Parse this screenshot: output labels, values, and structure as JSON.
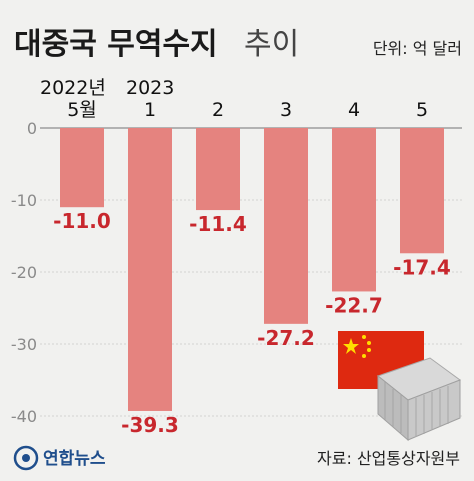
{
  "header": {
    "title_main": "대중국 무역수지",
    "title_sub": "추이",
    "unit": "단위: 억 달러"
  },
  "chart_data": {
    "type": "bar",
    "title": "대중국 무역수지 추이",
    "year_labels": [
      "2022년",
      "2023"
    ],
    "categories": [
      "5월",
      "1",
      "2",
      "3",
      "4",
      "5"
    ],
    "values": [
      -11.0,
      -39.3,
      -11.4,
      -27.2,
      -22.7,
      -17.4
    ],
    "value_labels": [
      "-11.0",
      "-39.3",
      "-11.4",
      "-27.2",
      "-22.7",
      "-17.4"
    ],
    "yticks": [
      "0",
      "-10",
      "-20",
      "-30",
      "-40"
    ],
    "ylim": [
      -44,
      0
    ],
    "grid": true,
    "bar_color": "#e5837f",
    "label_color": "#c8272d"
  },
  "footer": {
    "source": "자료: 산업통상자원부",
    "logo_text": "연합뉴스"
  }
}
